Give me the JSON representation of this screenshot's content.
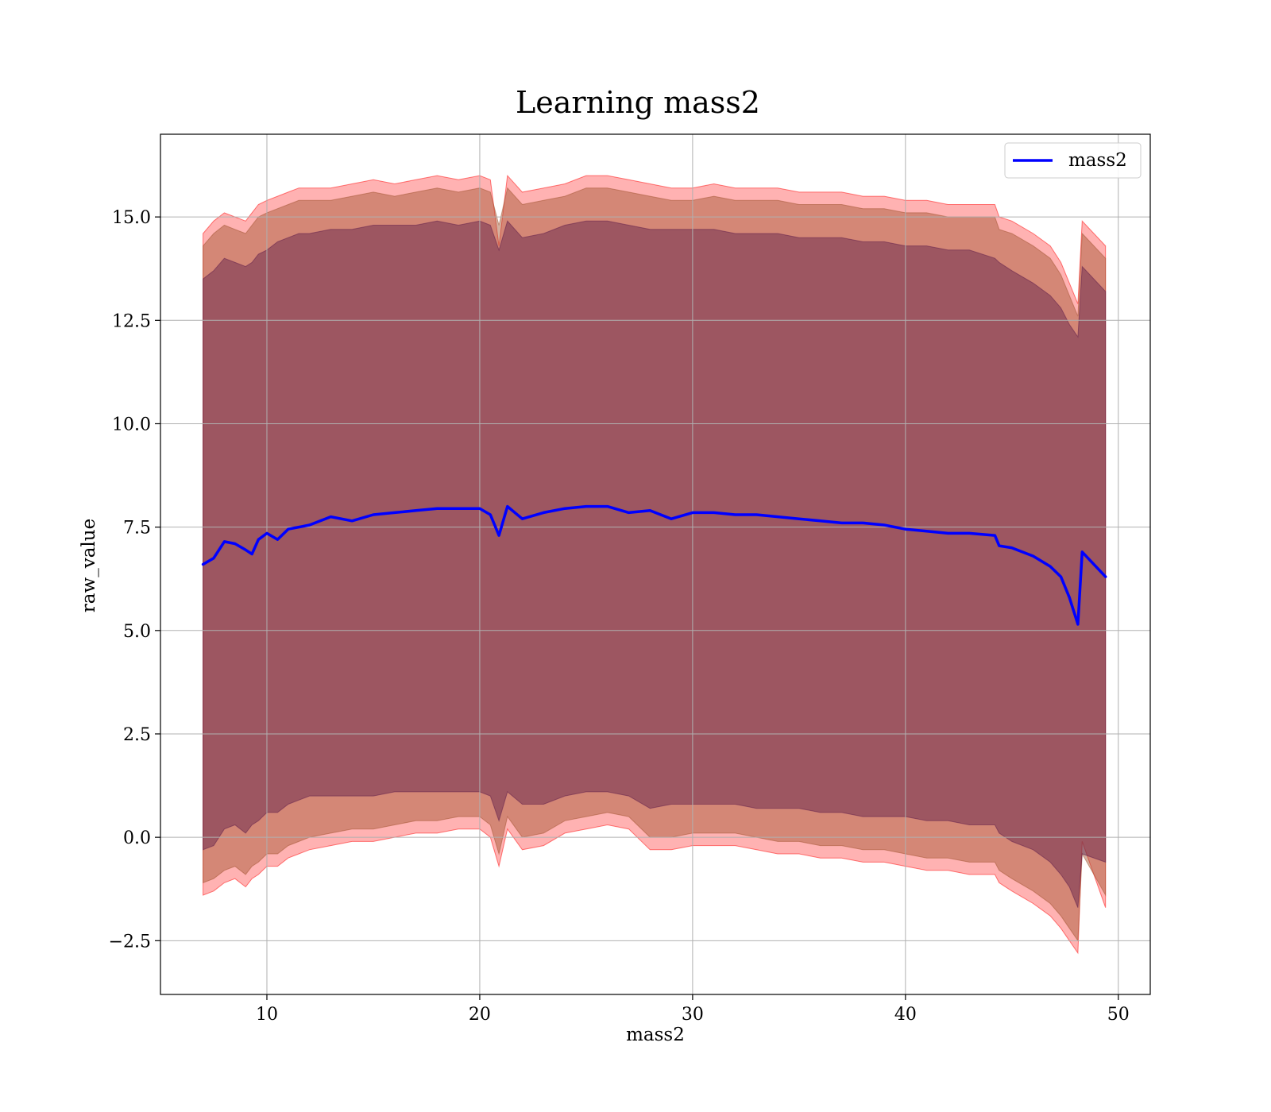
{
  "chart_data": {
    "type": "line",
    "title": "Learning mass2",
    "xlabel": "mass2",
    "ylabel": "raw_value",
    "xlim": [
      5,
      51.5
    ],
    "ylim": [
      -3.8,
      17.0
    ],
    "xticks": [
      10,
      20,
      30,
      40,
      50
    ],
    "xtick_labels": [
      "10",
      "20",
      "30",
      "40",
      "50"
    ],
    "yticks": [
      -2.5,
      0.0,
      2.5,
      5.0,
      7.5,
      10.0,
      12.5,
      15.0
    ],
    "ytick_labels": [
      "−2.5",
      "0.0",
      "2.5",
      "5.0",
      "7.5",
      "10.0",
      "12.5",
      "15.0"
    ],
    "grid": true,
    "legend": {
      "position": "top-right",
      "entries": [
        "mass2"
      ]
    },
    "colors": {
      "line": "#0000ff",
      "band_outer": "#ff0000",
      "band_middle": "#a0522d",
      "band_inner": "#5b1a4a"
    },
    "x": [
      7.0,
      7.5,
      8.0,
      8.5,
      9.0,
      9.3,
      9.6,
      10.0,
      10.5,
      11.0,
      11.5,
      12.0,
      13.0,
      14.0,
      15.0,
      16.0,
      17.0,
      18.0,
      19.0,
      20.0,
      20.5,
      20.9,
      21.3,
      22.0,
      23.0,
      24.0,
      25.0,
      26.0,
      27.0,
      28.0,
      29.0,
      30.0,
      31.0,
      32.0,
      33.0,
      34.0,
      35.0,
      36.0,
      37.0,
      38.0,
      39.0,
      40.0,
      41.0,
      42.0,
      43.0,
      44.2,
      44.4,
      45.0,
      46.0,
      46.8,
      47.3,
      47.7,
      48.1,
      48.3,
      49.4
    ],
    "series": [
      {
        "name": "mass2",
        "values": [
          6.6,
          6.75,
          7.15,
          7.1,
          6.95,
          6.85,
          7.2,
          7.35,
          7.2,
          7.45,
          7.5,
          7.55,
          7.75,
          7.65,
          7.8,
          7.85,
          7.9,
          7.95,
          7.95,
          7.95,
          7.8,
          7.3,
          8.0,
          7.7,
          7.85,
          7.95,
          8.0,
          8.0,
          7.85,
          7.9,
          7.7,
          7.85,
          7.85,
          7.8,
          7.8,
          7.75,
          7.7,
          7.65,
          7.6,
          7.6,
          7.55,
          7.45,
          7.4,
          7.35,
          7.35,
          7.3,
          7.05,
          7.0,
          6.8,
          6.55,
          6.3,
          5.8,
          5.15,
          6.9,
          6.3
        ]
      }
    ],
    "bands": [
      {
        "lower": [
          -1.4,
          -1.3,
          -1.1,
          -1.0,
          -1.2,
          -1.0,
          -0.9,
          -0.7,
          -0.7,
          -0.5,
          -0.4,
          -0.3,
          -0.2,
          -0.1,
          -0.1,
          0.0,
          0.1,
          0.1,
          0.2,
          0.2,
          0.0,
          -0.7,
          0.2,
          -0.3,
          -0.2,
          0.1,
          0.2,
          0.3,
          0.2,
          -0.3,
          -0.3,
          -0.2,
          -0.2,
          -0.2,
          -0.3,
          -0.4,
          -0.4,
          -0.5,
          -0.5,
          -0.6,
          -0.6,
          -0.7,
          -0.8,
          -0.8,
          -0.9,
          -0.9,
          -1.1,
          -1.3,
          -1.6,
          -1.9,
          -2.2,
          -2.5,
          -2.8,
          -0.1,
          -1.7
        ],
        "upper": [
          14.6,
          14.9,
          15.1,
          15.0,
          14.9,
          15.1,
          15.3,
          15.4,
          15.5,
          15.6,
          15.7,
          15.7,
          15.7,
          15.8,
          15.9,
          15.8,
          15.9,
          16.0,
          15.9,
          16.0,
          15.9,
          14.3,
          16.0,
          15.6,
          15.7,
          15.8,
          16.0,
          16.0,
          15.9,
          15.8,
          15.7,
          15.7,
          15.8,
          15.7,
          15.7,
          15.7,
          15.6,
          15.6,
          15.6,
          15.5,
          15.5,
          15.4,
          15.4,
          15.3,
          15.3,
          15.3,
          15.0,
          14.9,
          14.6,
          14.3,
          13.9,
          13.4,
          12.9,
          14.9,
          14.3
        ]
      },
      {
        "lower": [
          -1.1,
          -1.0,
          -0.8,
          -0.7,
          -0.9,
          -0.7,
          -0.6,
          -0.4,
          -0.4,
          -0.2,
          -0.1,
          0.0,
          0.1,
          0.2,
          0.2,
          0.3,
          0.4,
          0.4,
          0.5,
          0.5,
          0.3,
          -0.4,
          0.5,
          0.0,
          0.1,
          0.4,
          0.5,
          0.6,
          0.5,
          0.0,
          0.0,
          0.1,
          0.1,
          0.1,
          0.0,
          -0.1,
          -0.1,
          -0.2,
          -0.2,
          -0.3,
          -0.3,
          -0.4,
          -0.5,
          -0.5,
          -0.6,
          -0.6,
          -0.8,
          -1.0,
          -1.3,
          -1.6,
          -1.9,
          -2.2,
          -2.5,
          -0.4,
          -1.4
        ],
        "upper": [
          14.3,
          14.6,
          14.8,
          14.7,
          14.6,
          14.8,
          15.0,
          15.1,
          15.2,
          15.3,
          15.4,
          15.4,
          15.4,
          15.5,
          15.6,
          15.5,
          15.6,
          15.7,
          15.6,
          15.7,
          15.6,
          14.8,
          15.7,
          15.3,
          15.4,
          15.5,
          15.7,
          15.7,
          15.6,
          15.5,
          15.4,
          15.4,
          15.5,
          15.4,
          15.4,
          15.4,
          15.3,
          15.3,
          15.3,
          15.2,
          15.2,
          15.1,
          15.1,
          15.0,
          15.0,
          15.0,
          14.7,
          14.6,
          14.3,
          14.0,
          13.6,
          13.1,
          12.6,
          14.6,
          14.0
        ]
      },
      {
        "lower": [
          -0.3,
          -0.2,
          0.2,
          0.3,
          0.1,
          0.3,
          0.4,
          0.6,
          0.6,
          0.8,
          0.9,
          1.0,
          1.0,
          1.0,
          1.0,
          1.1,
          1.1,
          1.1,
          1.1,
          1.1,
          1.0,
          0.4,
          1.1,
          0.8,
          0.8,
          1.0,
          1.1,
          1.1,
          1.0,
          0.7,
          0.8,
          0.8,
          0.8,
          0.8,
          0.7,
          0.7,
          0.7,
          0.6,
          0.6,
          0.5,
          0.5,
          0.5,
          0.4,
          0.4,
          0.3,
          0.3,
          0.1,
          -0.1,
          -0.3,
          -0.6,
          -0.9,
          -1.2,
          -1.7,
          -0.4,
          -0.6
        ],
        "upper": [
          13.5,
          13.7,
          14.0,
          13.9,
          13.8,
          13.9,
          14.1,
          14.2,
          14.4,
          14.5,
          14.6,
          14.6,
          14.7,
          14.7,
          14.8,
          14.8,
          14.8,
          14.9,
          14.8,
          14.9,
          14.8,
          14.2,
          14.9,
          14.5,
          14.6,
          14.8,
          14.9,
          14.9,
          14.8,
          14.7,
          14.7,
          14.7,
          14.7,
          14.6,
          14.6,
          14.6,
          14.5,
          14.5,
          14.5,
          14.4,
          14.4,
          14.3,
          14.3,
          14.2,
          14.2,
          14.0,
          13.9,
          13.7,
          13.4,
          13.1,
          12.8,
          12.4,
          12.1,
          13.8,
          13.2
        ]
      }
    ]
  }
}
